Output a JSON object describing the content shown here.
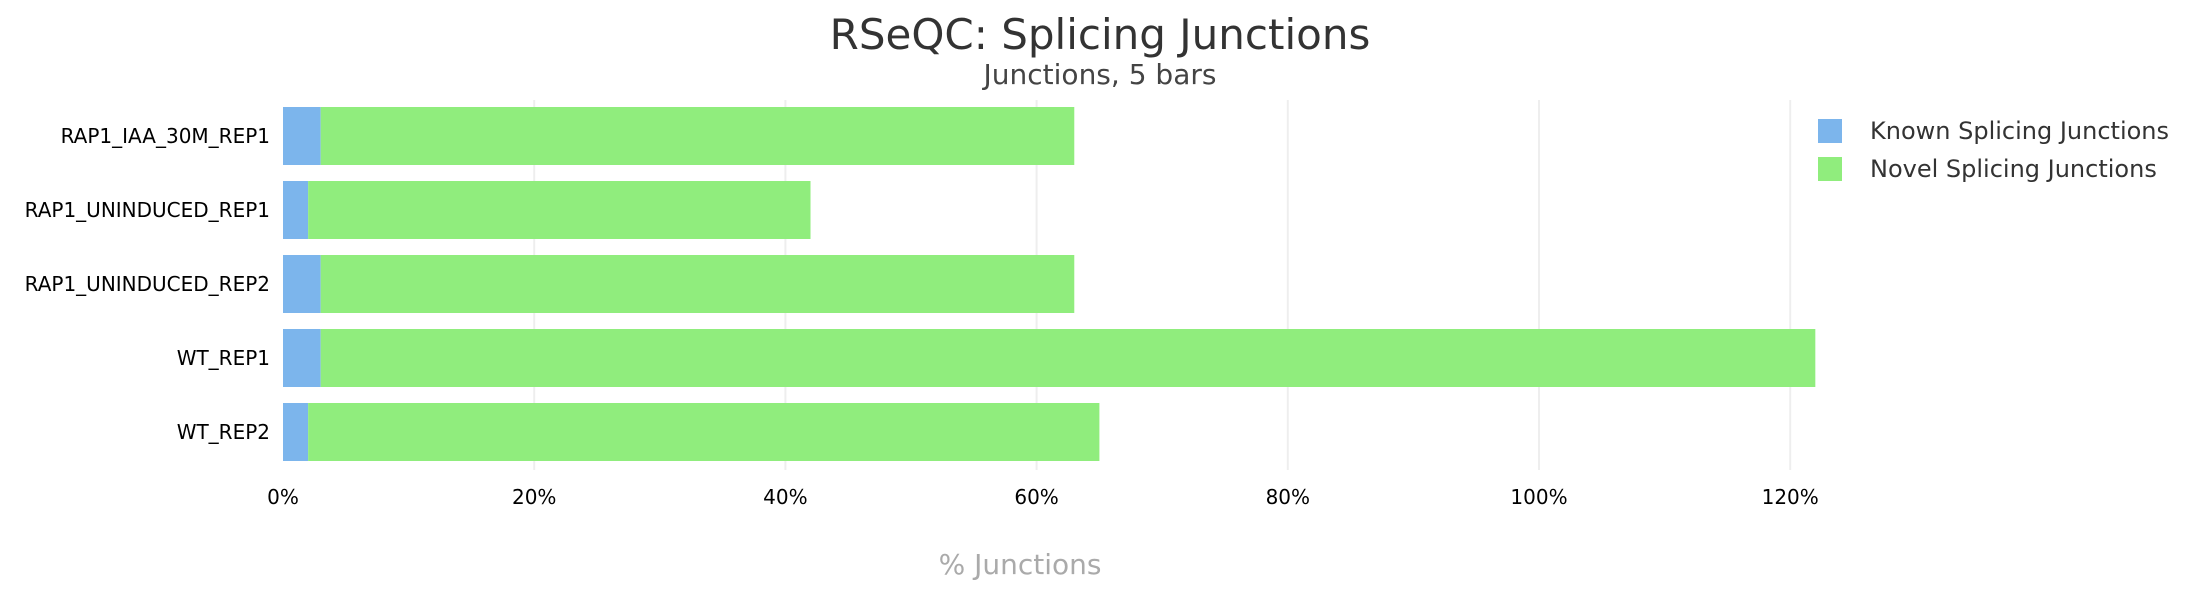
{
  "chart_data": {
    "type": "bar",
    "orientation": "horizontal",
    "stacked": true,
    "title": "RSeQC: Splicing Junctions",
    "subtitle": "Junctions, 5 bars",
    "xlabel": "% Junctions",
    "ylabel": "",
    "categories": [
      "RAP1_IAA_30M_REP1",
      "RAP1_UNINDUCED_REP1",
      "RAP1_UNINDUCED_REP2",
      "WT_REP1",
      "WT_REP2"
    ],
    "series": [
      {
        "name": "Known Splicing Junctions",
        "color": "#7cb5ec",
        "values": [
          3,
          2,
          3,
          3,
          2
        ]
      },
      {
        "name": "Novel Splicing Junctions",
        "color": "#90ed7d",
        "values": [
          60,
          40,
          60,
          119,
          63
        ]
      }
    ],
    "xlim": [
      0,
      125
    ],
    "xticks": [
      0,
      20,
      40,
      60,
      80,
      100,
      120
    ],
    "tick_suffix": "%",
    "grid": "vertical",
    "legend_position": "top-right"
  }
}
